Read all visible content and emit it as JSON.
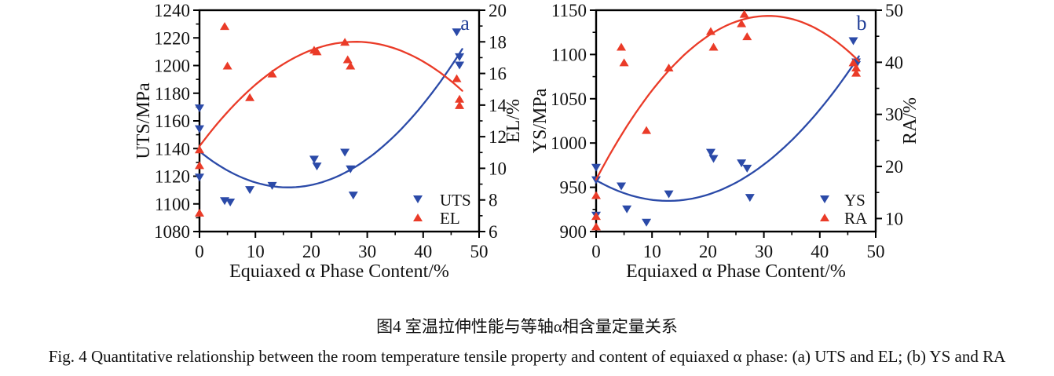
{
  "captions": {
    "chinese": "图4 室温拉伸性能与等轴α相含量定量关系",
    "english": "Fig. 4 Quantitative relationship between the room temperature tensile property and content of equiaxed α phase: (a) UTS and EL; (b) YS and RA"
  },
  "colors": {
    "series_blue": "#2b4aa8",
    "series_red": "#ea3b28",
    "axis": "#000000",
    "panel_label": "#1e3c96",
    "text": "#111111"
  },
  "chart_data": [
    {
      "type": "scatter",
      "panel_label": "a",
      "grid": false,
      "legend_position": "inside-bottom-right",
      "x_axis": {
        "label": "Equiaxed α Phase Content/%",
        "min": 0,
        "max": 50,
        "major_ticks": [
          0,
          10,
          20,
          30,
          40,
          50
        ],
        "minor_step": 5
      },
      "y_left": {
        "label": "UTS/MPa",
        "min": 1080,
        "max": 1240,
        "major_ticks": [
          1080,
          1100,
          1120,
          1140,
          1160,
          1180,
          1200,
          1220,
          1240
        ],
        "minor_step": 10
      },
      "y_right": {
        "label": "EL/%",
        "min": 6,
        "max": 20,
        "major_ticks": [
          6,
          8,
          10,
          12,
          14,
          16,
          18,
          20
        ],
        "minor_step": 1
      },
      "series": [
        {
          "name": "UTS",
          "axis": "left",
          "marker": "triangle-down",
          "color_key": "series_blue",
          "points": [
            [
              0,
              1169
            ],
            [
              0,
              1154
            ],
            [
              0,
              1119
            ],
            [
              4.5,
              1102
            ],
            [
              5.5,
              1101
            ],
            [
              9,
              1110
            ],
            [
              13,
              1113
            ],
            [
              20.5,
              1132
            ],
            [
              21,
              1127
            ],
            [
              26,
              1137
            ],
            [
              27,
              1125
            ],
            [
              27.5,
              1106
            ],
            [
              46,
              1224
            ],
            [
              46.5,
              1206
            ],
            [
              46.5,
              1200
            ]
          ],
          "fit_curve": [
            [
              0,
              1138
            ],
            [
              15,
              1112
            ],
            [
              47,
              1212
            ]
          ]
        },
        {
          "name": "EL",
          "axis": "right",
          "marker": "triangle-up",
          "color_key": "series_red",
          "points": [
            [
              0,
              11.2
            ],
            [
              0,
              10.2
            ],
            [
              0,
              7.2
            ],
            [
              4.5,
              19
            ],
            [
              5,
              16.5
            ],
            [
              9,
              14.5
            ],
            [
              13,
              16
            ],
            [
              20.5,
              17.5
            ],
            [
              21,
              17.4
            ],
            [
              26,
              18
            ],
            [
              26.5,
              16.9
            ],
            [
              27,
              16.5
            ],
            [
              46,
              15.7
            ],
            [
              46.5,
              14.4
            ],
            [
              46.5,
              14
            ]
          ],
          "fit_curve": [
            [
              0,
              11.4
            ],
            [
              28.5,
              18
            ],
            [
              47,
              14.9
            ]
          ]
        }
      ]
    },
    {
      "type": "scatter",
      "panel_label": "b",
      "grid": false,
      "legend_position": "inside-bottom-right",
      "x_axis": {
        "label": "Equiaxed α Phase Content/%",
        "min": 0,
        "max": 50,
        "major_ticks": [
          0,
          10,
          20,
          30,
          40,
          50
        ],
        "minor_step": 5
      },
      "y_left": {
        "label": "YS/MPa",
        "min": 900,
        "max": 1150,
        "major_ticks": [
          900,
          950,
          1000,
          1050,
          1100,
          1150
        ],
        "minor_step": 25
      },
      "y_right": {
        "label": "RA/%",
        "min": 7.5,
        "max": 50,
        "major_ticks": [
          10,
          20,
          30,
          40,
          50
        ],
        "minor_step": 5
      },
      "series": [
        {
          "name": "YS",
          "axis": "left",
          "marker": "triangle-down",
          "color_key": "series_blue",
          "points": [
            [
              0,
              972
            ],
            [
              0,
              958
            ],
            [
              0,
              918
            ],
            [
              4.5,
              951
            ],
            [
              5.5,
              925
            ],
            [
              9,
              910
            ],
            [
              13,
              942
            ],
            [
              20.5,
              989
            ],
            [
              21,
              982
            ],
            [
              26,
              977
            ],
            [
              27,
              971
            ],
            [
              27.5,
              938
            ],
            [
              46,
              1115
            ],
            [
              46.5,
              1091
            ],
            [
              46.5,
              1088
            ]
          ],
          "fit_curve": [
            [
              0,
              958
            ],
            [
              8,
              938
            ],
            [
              47,
              1098
            ]
          ]
        },
        {
          "name": "RA",
          "axis": "right",
          "marker": "triangle-up",
          "color_key": "series_red",
          "points": [
            [
              0,
              14.5
            ],
            [
              0,
              10.5
            ],
            [
              0,
              8.5
            ],
            [
              4.5,
              43
            ],
            [
              5,
              40
            ],
            [
              9,
              27
            ],
            [
              13,
              39
            ],
            [
              20.5,
              46
            ],
            [
              21,
              43
            ],
            [
              26,
              47.5
            ],
            [
              26.5,
              49.3
            ],
            [
              27,
              45
            ],
            [
              46,
              40
            ],
            [
              46.5,
              39
            ],
            [
              46.5,
              38
            ]
          ],
          "fit_curve": [
            [
              0,
              17.5
            ],
            [
              29,
              48.8
            ],
            [
              47,
              40.2
            ]
          ]
        }
      ]
    }
  ]
}
